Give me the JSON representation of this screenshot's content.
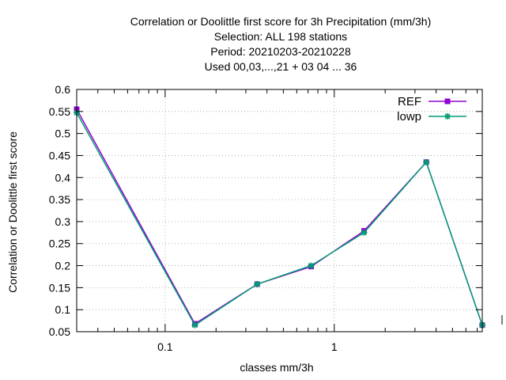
{
  "chart_data": {
    "type": "line",
    "title_lines": [
      "Correlation or Doolittle first score  for 3h Precipitation (mm/3h)",
      "Selection: ALL    198 stations",
      "Period: 20210203-20210228",
      "Used  00,03,...,21  + 03 04 ... 36"
    ],
    "xlabel": "classes mm/3h",
    "ylabel": "Correlation or Doolittle first score",
    "x_scale": "log",
    "xlim": [
      0.03,
      7.5
    ],
    "ylim": [
      0.05,
      0.6
    ],
    "x_ticks": [
      {
        "value": 0.1,
        "label": "0.1"
      },
      {
        "value": 1,
        "label": "1"
      }
    ],
    "y_ticks": [
      {
        "value": 0.05,
        "label": "0.05"
      },
      {
        "value": 0.1,
        "label": "0.1"
      },
      {
        "value": 0.15,
        "label": "0.15"
      },
      {
        "value": 0.2,
        "label": "0.2"
      },
      {
        "value": 0.25,
        "label": "0.25"
      },
      {
        "value": 0.3,
        "label": "0.3"
      },
      {
        "value": 0.35,
        "label": "0.35"
      },
      {
        "value": 0.4,
        "label": "0.4"
      },
      {
        "value": 0.45,
        "label": "0.45"
      },
      {
        "value": 0.5,
        "label": "0.5"
      },
      {
        "value": 0.55,
        "label": "0.55"
      },
      {
        "value": 0.6,
        "label": "0.6"
      }
    ],
    "grid": true,
    "legend_position": "top-right",
    "series": [
      {
        "name": "REF",
        "color": "#9400d3",
        "marker": "square",
        "x": [
          0.03,
          0.15,
          0.35,
          0.73,
          1.5,
          3.5,
          7.5
        ],
        "y": [
          0.555,
          0.068,
          0.158,
          0.198,
          0.279,
          0.435,
          0.065
        ]
      },
      {
        "name": "lowp",
        "color": "#009e73",
        "marker": "star",
        "x": [
          0.03,
          0.15,
          0.35,
          0.73,
          1.5,
          3.5,
          7.5
        ],
        "y": [
          0.547,
          0.065,
          0.158,
          0.2,
          0.275,
          0.435,
          0.065
        ]
      }
    ]
  }
}
